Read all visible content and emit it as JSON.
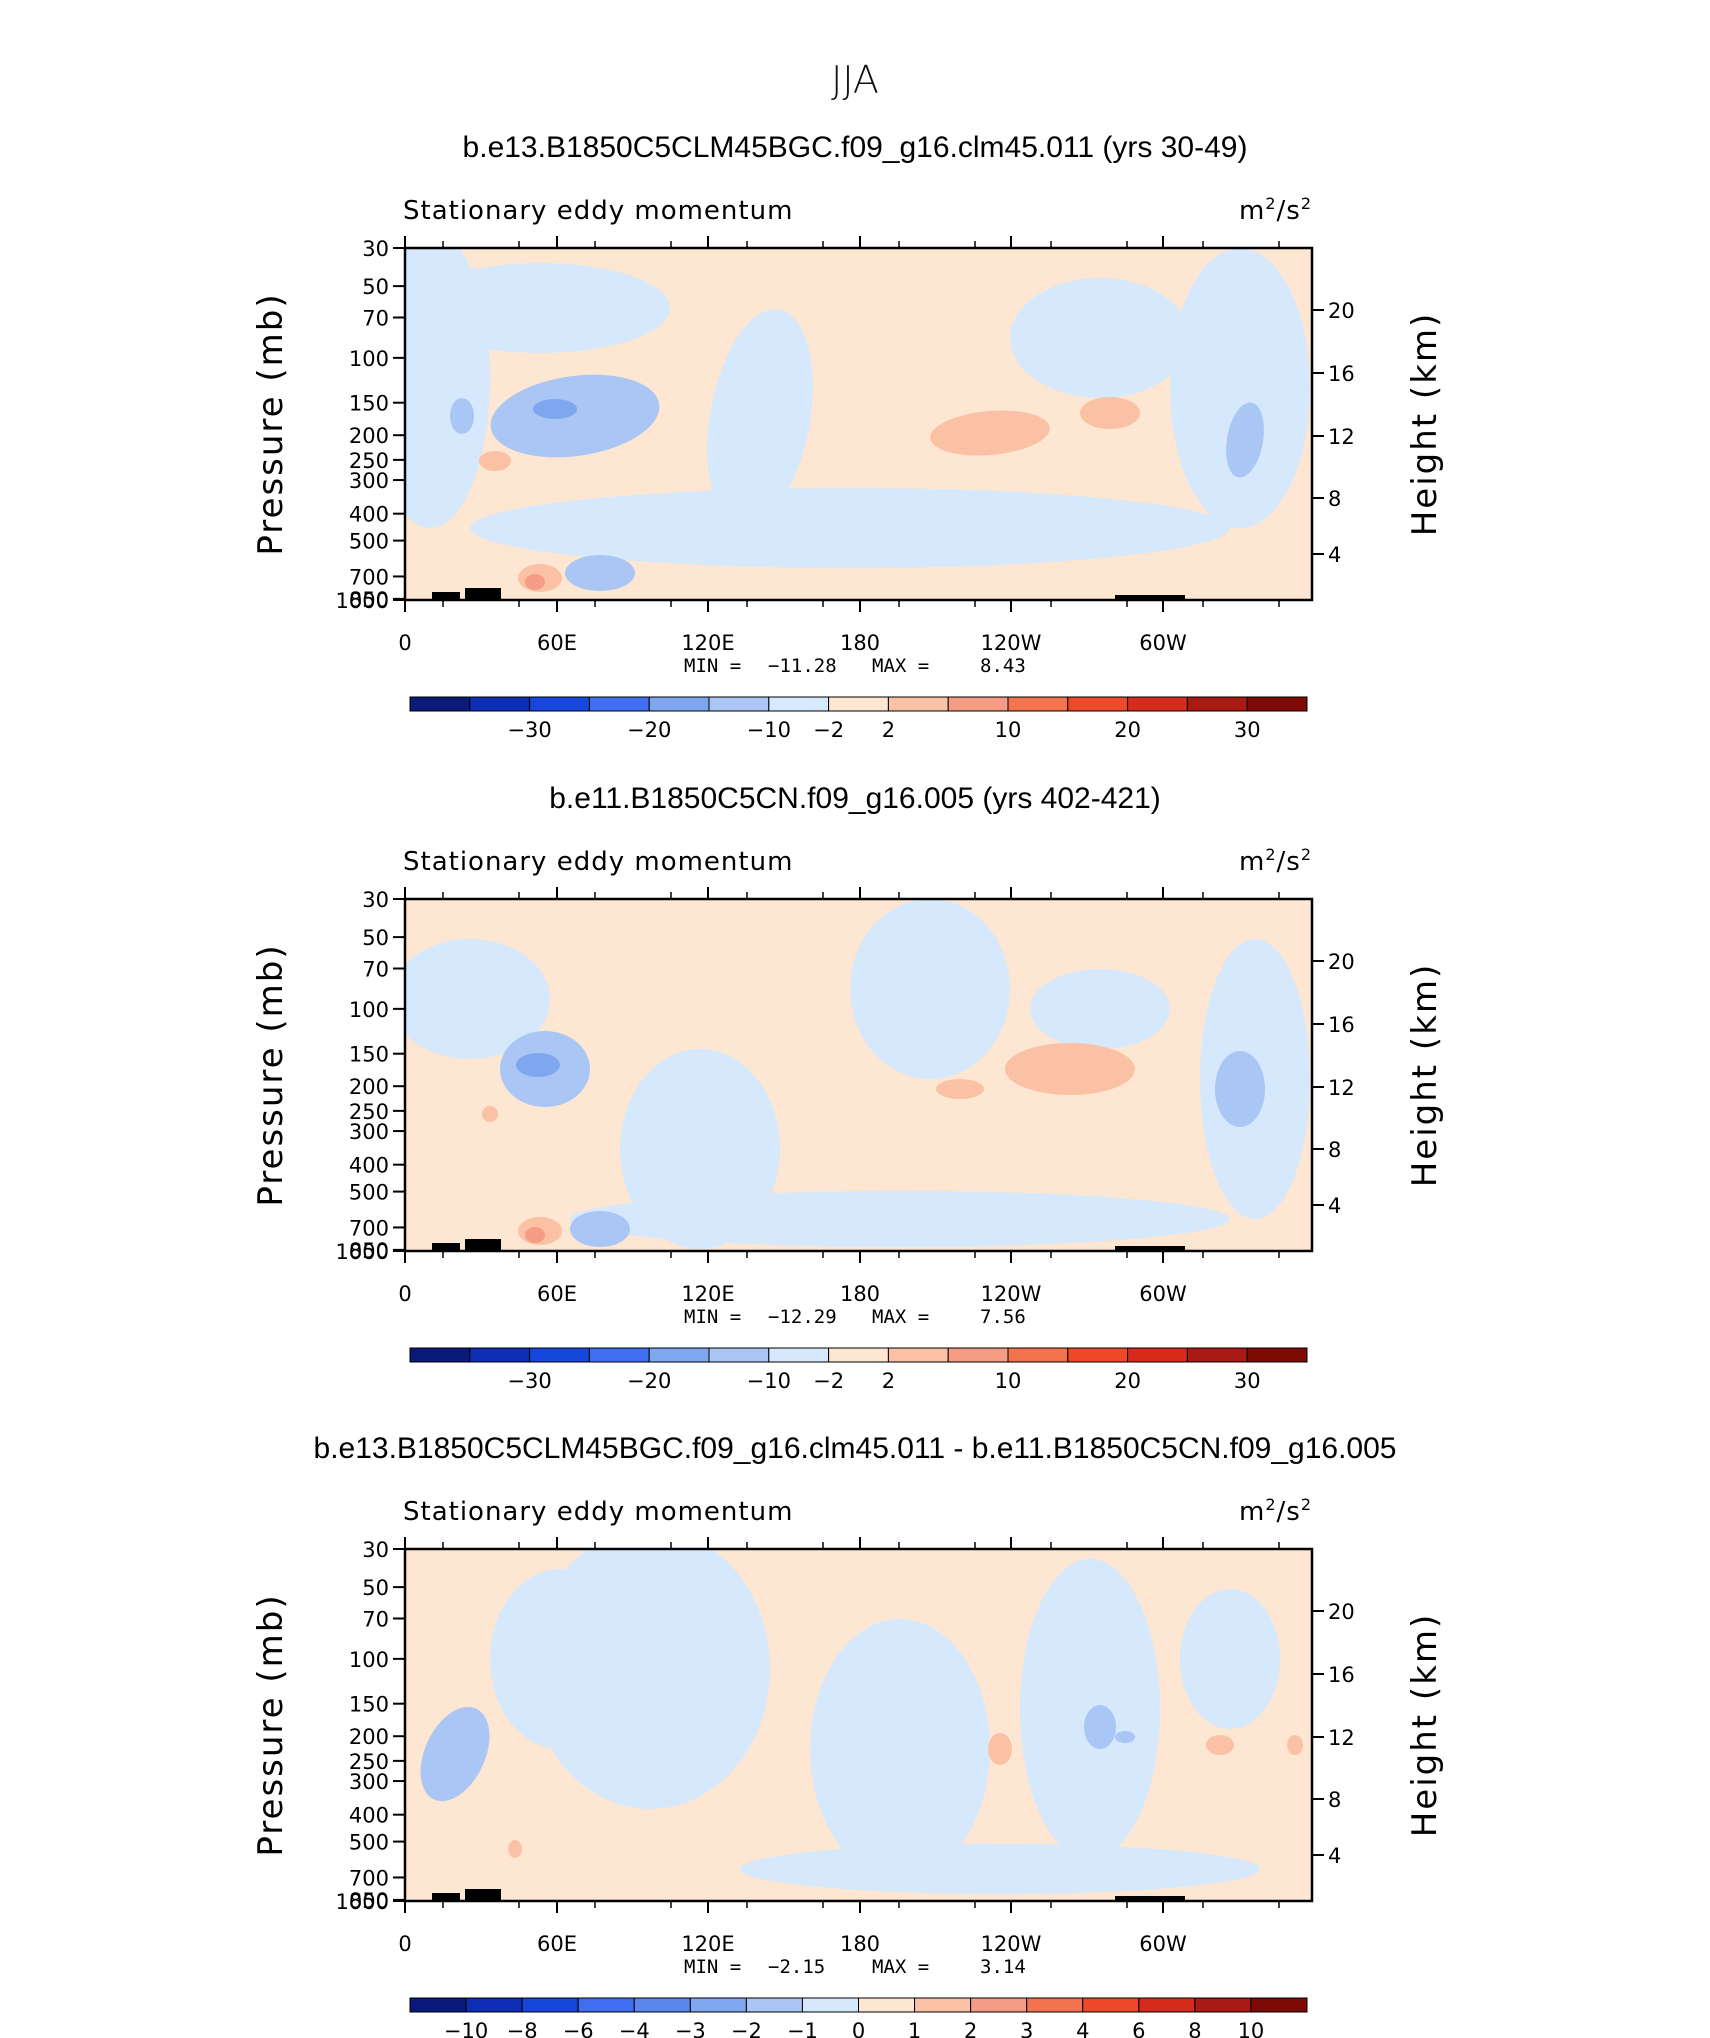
{
  "figure_title": "JJA",
  "colors": {
    "neg_light": "#d6e8fb",
    "neg_mid": "#a9c6f5",
    "neg_strong": "#7ea7f0",
    "neg_core": "#5b86ec",
    "pos_light": "#fde6d2",
    "pos_mid": "#fbc1a4",
    "pos_strong": "#f59c84",
    "topo": "#000000"
  },
  "chart_data": [
    {
      "type": "heatmap",
      "title": "b.e13.B1850C5CLM45BGC.f09_g16.clm45.011 (yrs 30-49)",
      "left_label": "Stationary eddy momentum",
      "units": "m²/s²",
      "units_base": "m",
      "units_mid": "/s",
      "sup": "2",
      "ylabel": "Pressure (mb)",
      "y2label": "Height (km)",
      "x_ticks": [
        "0",
        "60E",
        "120E",
        "180",
        "120W",
        "60W"
      ],
      "y_ticks": [
        "30",
        "50",
        "70",
        "100",
        "150",
        "200",
        "250",
        "300",
        "400",
        "500",
        "700",
        "850",
        "1000"
      ],
      "y2_ticks": [
        "20",
        "16",
        "12",
        "8",
        "4"
      ],
      "min_label": "MIN =",
      "min_value": "−11.28",
      "max_label": "MAX =",
      "max_value": "8.43",
      "colorbar_levels": [
        "−30",
        "−20",
        "−10",
        "−2",
        "2",
        "10",
        "20",
        "30"
      ]
    },
    {
      "type": "heatmap",
      "title": "b.e11.B1850C5CN.f09_g16.005 (yrs 402-421)",
      "left_label": "Stationary eddy momentum",
      "units": "m²/s²",
      "units_base": "m",
      "units_mid": "/s",
      "sup": "2",
      "ylabel": "Pressure (mb)",
      "y2label": "Height (km)",
      "x_ticks": [
        "0",
        "60E",
        "120E",
        "180",
        "120W",
        "60W"
      ],
      "y_ticks": [
        "30",
        "50",
        "70",
        "100",
        "150",
        "200",
        "250",
        "300",
        "400",
        "500",
        "700",
        "850",
        "1000"
      ],
      "y2_ticks": [
        "20",
        "16",
        "12",
        "8",
        "4"
      ],
      "min_label": "MIN =",
      "min_value": "−12.29",
      "max_label": "MAX =",
      "max_value": "7.56",
      "colorbar_levels": [
        "−30",
        "−20",
        "−10",
        "−2",
        "2",
        "10",
        "20",
        "30"
      ]
    },
    {
      "type": "heatmap",
      "title": "b.e13.B1850C5CLM45BGC.f09_g16.clm45.011 - b.e11.B1850C5CN.f09_g16.005",
      "left_label": "Stationary eddy momentum",
      "units": "m²/s²",
      "units_base": "m",
      "units_mid": "/s",
      "sup": "2",
      "ylabel": "Pressure (mb)",
      "y2label": "Height (km)",
      "x_ticks": [
        "0",
        "60E",
        "120E",
        "180",
        "120W",
        "60W"
      ],
      "y_ticks": [
        "30",
        "50",
        "70",
        "100",
        "150",
        "200",
        "250",
        "300",
        "400",
        "500",
        "700",
        "850",
        "1000"
      ],
      "y2_ticks": [
        "20",
        "16",
        "12",
        "8",
        "4"
      ],
      "min_label": "MIN =",
      "min_value": "−2.15",
      "max_label": "MAX =",
      "max_value": "3.14",
      "colorbar_levels": [
        "−10",
        "−8",
        "−6",
        "−4",
        "−3",
        "−2",
        "−1",
        "0",
        "1",
        "2",
        "3",
        "4",
        "6",
        "8",
        "10"
      ]
    }
  ]
}
